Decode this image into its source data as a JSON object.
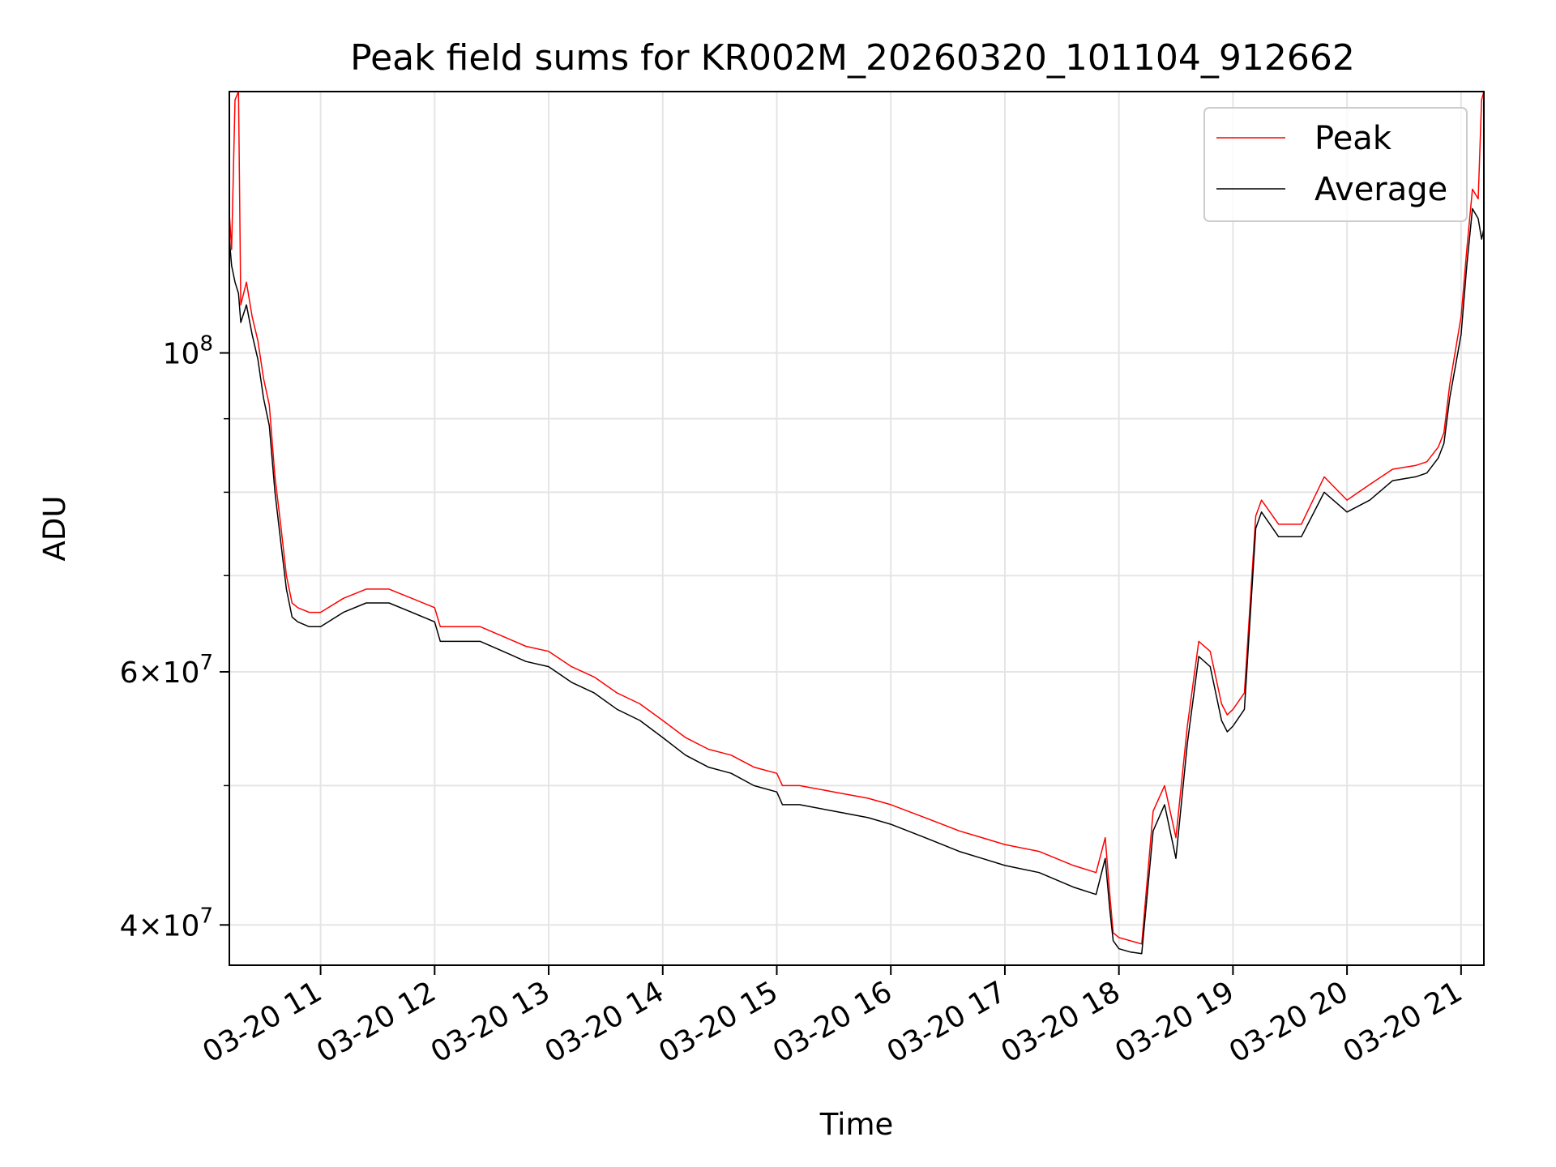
{
  "colors": {
    "peak": "#ff0000",
    "average": "#000000",
    "grid": "#e5e5e5",
    "axes": "#000000",
    "background": "#ffffff",
    "legend_border": "#cccccc"
  },
  "chart_data": {
    "type": "line",
    "title": "Peak field sums for KR002M_20260320_101104_912662",
    "xlabel": "Time",
    "ylabel": "ADU",
    "yscale": "log",
    "grid": true,
    "legend_position": "top-right",
    "xlim": [
      10.2,
      21.2
    ],
    "ylim": [
      37500000,
      152000000
    ],
    "x_unit": "hours on 2026-03-20",
    "x_ticks": [
      {
        "value": 11,
        "label": "03-20 11"
      },
      {
        "value": 12,
        "label": "03-20 12"
      },
      {
        "value": 13,
        "label": "03-20 13"
      },
      {
        "value": 14,
        "label": "03-20 14"
      },
      {
        "value": 15,
        "label": "03-20 15"
      },
      {
        "value": 16,
        "label": "03-20 16"
      },
      {
        "value": 17,
        "label": "03-20 17"
      },
      {
        "value": 18,
        "label": "03-20 18"
      },
      {
        "value": 19,
        "label": "03-20 19"
      },
      {
        "value": 20,
        "label": "03-20 20"
      },
      {
        "value": 21,
        "label": "03-20 21"
      }
    ],
    "y_ticks_major": [
      {
        "value": 40000000,
        "mantissa": "4",
        "exponent": "7"
      },
      {
        "value": 60000000,
        "mantissa": "6",
        "exponent": "7"
      },
      {
        "value": 100000000,
        "mantissa": "",
        "exponent": "8"
      }
    ],
    "y_ticks_minor": [
      50000000,
      70000000,
      80000000,
      90000000
    ],
    "series": [
      {
        "name": "Peak",
        "x": [
          10.2,
          10.22,
          10.25,
          10.28,
          10.3,
          10.35,
          10.4,
          10.45,
          10.5,
          10.55,
          10.6,
          10.65,
          10.7,
          10.75,
          10.8,
          10.9,
          11.0,
          11.2,
          11.4,
          11.6,
          11.8,
          12.0,
          12.05,
          12.2,
          12.4,
          12.6,
          12.8,
          13.0,
          13.2,
          13.4,
          13.6,
          13.8,
          14.0,
          14.2,
          14.4,
          14.6,
          14.8,
          15.0,
          15.05,
          15.2,
          15.5,
          15.8,
          16.0,
          16.3,
          16.6,
          16.8,
          17.0,
          17.3,
          17.6,
          17.8,
          17.88,
          17.92,
          17.95,
          18.0,
          18.1,
          18.2,
          18.3,
          18.4,
          18.5,
          18.6,
          18.7,
          18.8,
          18.9,
          18.95,
          19.0,
          19.1,
          19.2,
          19.25,
          19.4,
          19.6,
          19.8,
          20.0,
          20.2,
          20.4,
          20.6,
          20.7,
          20.8,
          20.85,
          20.9,
          21.0,
          21.05,
          21.1,
          21.15,
          21.18,
          21.2
        ],
        "values": [
          125000000,
          118000000,
          150000000,
          152000000,
          108000000,
          112000000,
          106000000,
          102000000,
          96000000,
          92000000,
          82000000,
          76000000,
          70000000,
          67000000,
          66500000,
          66000000,
          66000000,
          67500000,
          68500000,
          68500000,
          67500000,
          66500000,
          64500000,
          64500000,
          64500000,
          63500000,
          62500000,
          62000000,
          60500000,
          59500000,
          58000000,
          57000000,
          55500000,
          54000000,
          53000000,
          52500000,
          51500000,
          51000000,
          50000000,
          50000000,
          49500000,
          49000000,
          48500000,
          47500000,
          46500000,
          46000000,
          45500000,
          45000000,
          44000000,
          43500000,
          46000000,
          42000000,
          39500000,
          39200000,
          39000000,
          38800000,
          48000000,
          50000000,
          46000000,
          55000000,
          63000000,
          62000000,
          57000000,
          56000000,
          56500000,
          58000000,
          77000000,
          79000000,
          76000000,
          76000000,
          82000000,
          79000000,
          81000000,
          83000000,
          83500000,
          84000000,
          86000000,
          88000000,
          95000000,
          106000000,
          118000000,
          130000000,
          128000000,
          150000000,
          152000000
        ]
      },
      {
        "name": "Average",
        "x": [
          10.2,
          10.22,
          10.25,
          10.28,
          10.3,
          10.35,
          10.4,
          10.45,
          10.5,
          10.55,
          10.6,
          10.65,
          10.7,
          10.75,
          10.8,
          10.9,
          11.0,
          11.2,
          11.4,
          11.6,
          11.8,
          12.0,
          12.05,
          12.2,
          12.4,
          12.6,
          12.8,
          13.0,
          13.2,
          13.4,
          13.6,
          13.8,
          14.0,
          14.2,
          14.4,
          14.6,
          14.8,
          15.0,
          15.05,
          15.2,
          15.5,
          15.8,
          16.0,
          16.3,
          16.6,
          16.8,
          17.0,
          17.3,
          17.6,
          17.8,
          17.88,
          17.92,
          17.95,
          18.0,
          18.1,
          18.2,
          18.3,
          18.4,
          18.5,
          18.6,
          18.7,
          18.8,
          18.9,
          18.95,
          19.0,
          19.1,
          19.2,
          19.25,
          19.4,
          19.6,
          19.8,
          20.0,
          20.2,
          20.4,
          20.6,
          20.7,
          20.8,
          20.85,
          20.9,
          21.0,
          21.05,
          21.1,
          21.15,
          21.18,
          21.2
        ],
        "values": [
          120000000,
          115000000,
          112000000,
          110000000,
          105000000,
          108000000,
          103000000,
          99000000,
          93000000,
          89000000,
          80000000,
          74000000,
          68500000,
          65500000,
          65000000,
          64500000,
          64500000,
          66000000,
          67000000,
          67000000,
          66000000,
          65000000,
          63000000,
          63000000,
          63000000,
          62000000,
          61000000,
          60500000,
          59000000,
          58000000,
          56500000,
          55500000,
          54000000,
          52500000,
          51500000,
          51000000,
          50000000,
          49500000,
          48500000,
          48500000,
          48000000,
          47500000,
          47000000,
          46000000,
          45000000,
          44500000,
          44000000,
          43500000,
          42500000,
          42000000,
          44500000,
          41000000,
          39000000,
          38500000,
          38300000,
          38200000,
          46500000,
          48500000,
          44500000,
          53500000,
          61500000,
          60500000,
          55500000,
          54500000,
          55000000,
          56500000,
          75500000,
          77500000,
          74500000,
          74500000,
          80000000,
          77500000,
          79000000,
          81500000,
          82000000,
          82500000,
          84500000,
          86500000,
          93000000,
          103000000,
          115000000,
          126000000,
          124000000,
          120000000,
          122000000
        ]
      }
    ]
  }
}
